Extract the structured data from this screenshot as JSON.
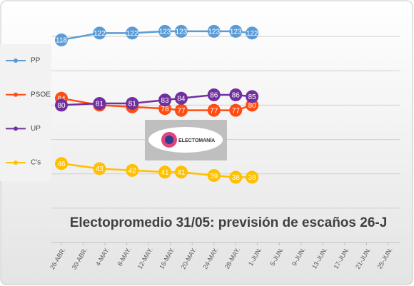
{
  "chart_data": {
    "type": "line",
    "title": "Electopromedio 31/05: previsión de escaños 26-J",
    "logo": "ELECTOMANÍA",
    "x": [
      0,
      7,
      13,
      19,
      22,
      28,
      32,
      35
    ],
    "xlim": [
      0,
      60
    ],
    "xticks": [
      {
        "value": 0,
        "label": "26-ABR."
      },
      {
        "value": 4,
        "label": "30-ABR."
      },
      {
        "value": 8,
        "label": "4-MAY."
      },
      {
        "value": 12,
        "label": "8-MAY."
      },
      {
        "value": 16,
        "label": "12-MAY."
      },
      {
        "value": 20,
        "label": "16-MAY."
      },
      {
        "value": 24,
        "label": "20-MAY."
      },
      {
        "value": 28,
        "label": "24-MAY."
      },
      {
        "value": 32,
        "label": "28-MAY."
      },
      {
        "value": 36,
        "label": "1-JUN."
      },
      {
        "value": 40,
        "label": "5-JUN."
      },
      {
        "value": 44,
        "label": "9-JUN."
      },
      {
        "value": 48,
        "label": "13-JUN."
      },
      {
        "value": 52,
        "label": "17-JUN."
      },
      {
        "value": 56,
        "label": "21-JUN."
      },
      {
        "value": 60,
        "label": "25-JUN."
      }
    ],
    "ylim": [
      0,
      140
    ],
    "yticks": [
      0,
      20,
      40,
      60,
      80,
      100,
      120,
      140
    ],
    "grid": true,
    "legend": "left",
    "series": [
      {
        "name": "PP",
        "color": "#5b9bd5",
        "values": [
          118,
          122,
          122,
          123,
          123,
          123,
          123,
          122
        ]
      },
      {
        "name": "PSOE",
        "color": "#ff4d12",
        "values": [
          84,
          80,
          79,
          78,
          77,
          77,
          77,
          80
        ]
      },
      {
        "name": "UP",
        "color": "#7030a0",
        "values": [
          80,
          81,
          81,
          83,
          84,
          86,
          86,
          85
        ]
      },
      {
        "name": "C's",
        "color": "#ffc000",
        "values": [
          46,
          43,
          42,
          41,
          41,
          39,
          38,
          38
        ]
      }
    ]
  }
}
